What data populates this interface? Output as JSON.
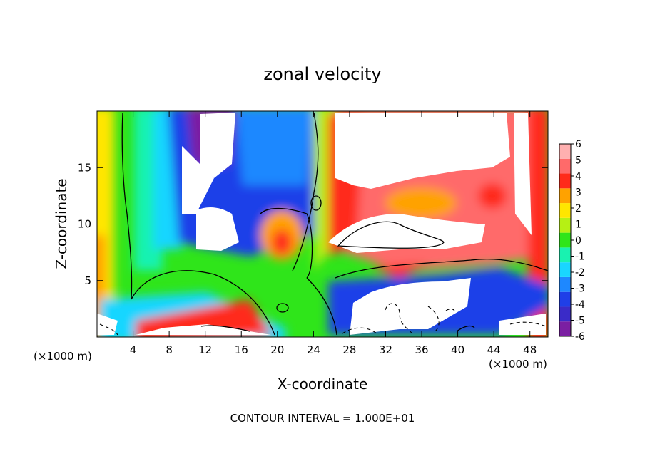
{
  "chart_data": {
    "type": "heatmap",
    "title": "zonal velocity",
    "xlabel": "X-coordinate",
    "ylabel": "Z-coordinate",
    "x_unit_left": "(×1000 m)",
    "x_unit_right": "(×1000 m)",
    "xlim": [
      0,
      50
    ],
    "ylim": [
      0,
      20
    ],
    "x_ticks": [
      4,
      8,
      12,
      16,
      20,
      24,
      28,
      32,
      36,
      40,
      44,
      48
    ],
    "y_ticks": [
      5,
      10,
      15
    ],
    "colorbar": {
      "min": -6,
      "max": 6,
      "ticks": [
        6,
        5,
        4,
        3,
        2,
        1,
        0,
        -1,
        -2,
        -3,
        -4,
        -5,
        -6
      ],
      "colors": [
        "#7b1fa2",
        "#3a2bc8",
        "#1f3fe8",
        "#1e88ff",
        "#19d6ff",
        "#19f2b0",
        "#2fe51a",
        "#b6f014",
        "#ffe600",
        "#ffa200",
        "#ff2b1a",
        "#ff6a6a",
        "#ffb0b0"
      ]
    },
    "grid": false,
    "annotation": "CONTOUR INTERVAL =  1.000E+01"
  }
}
